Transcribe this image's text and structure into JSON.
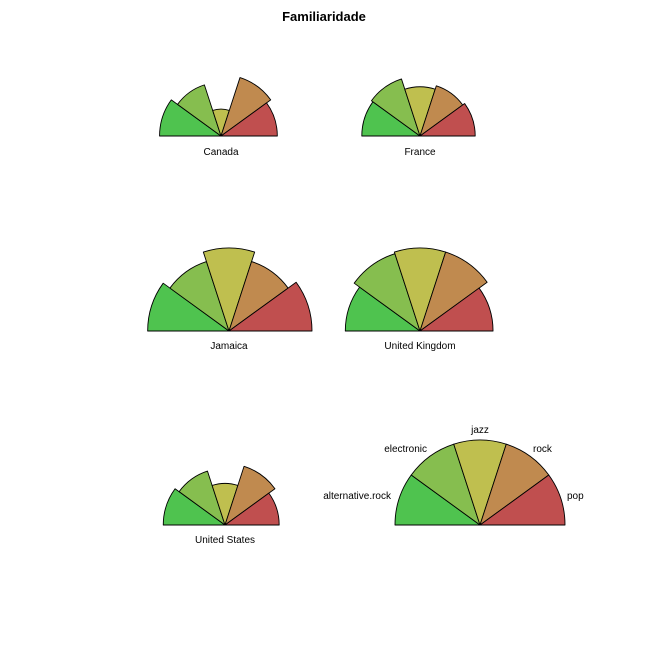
{
  "chart_data": {
    "type": "radial-bar",
    "title": "Familiaridade",
    "categories": [
      "alternative.rock",
      "electronic",
      "jazz",
      "rock",
      "pop"
    ],
    "colors": [
      "#4fc34f",
      "#86be4f",
      "#bfbf4f",
      "#c08a4f",
      "#c04f4f"
    ],
    "panels": [
      {
        "name": "Canada",
        "values": [
          0.96,
          0.84,
          0.42,
          0.96,
          0.88
        ]
      },
      {
        "name": "France",
        "values": [
          0.97,
          1.0,
          0.82,
          0.88,
          0.92
        ]
      },
      {
        "name": "Jamaica",
        "values": [
          0.98,
          0.88,
          1.0,
          0.88,
          1.0
        ]
      },
      {
        "name": "United Kingdom",
        "values": [
          0.9,
          0.98,
          1.0,
          1.0,
          0.88
        ]
      },
      {
        "name": "United States",
        "values": [
          0.98,
          0.9,
          0.66,
          0.98,
          0.86
        ]
      }
    ],
    "legend": {
      "values": [
        1,
        1,
        1,
        1,
        1
      ]
    }
  }
}
